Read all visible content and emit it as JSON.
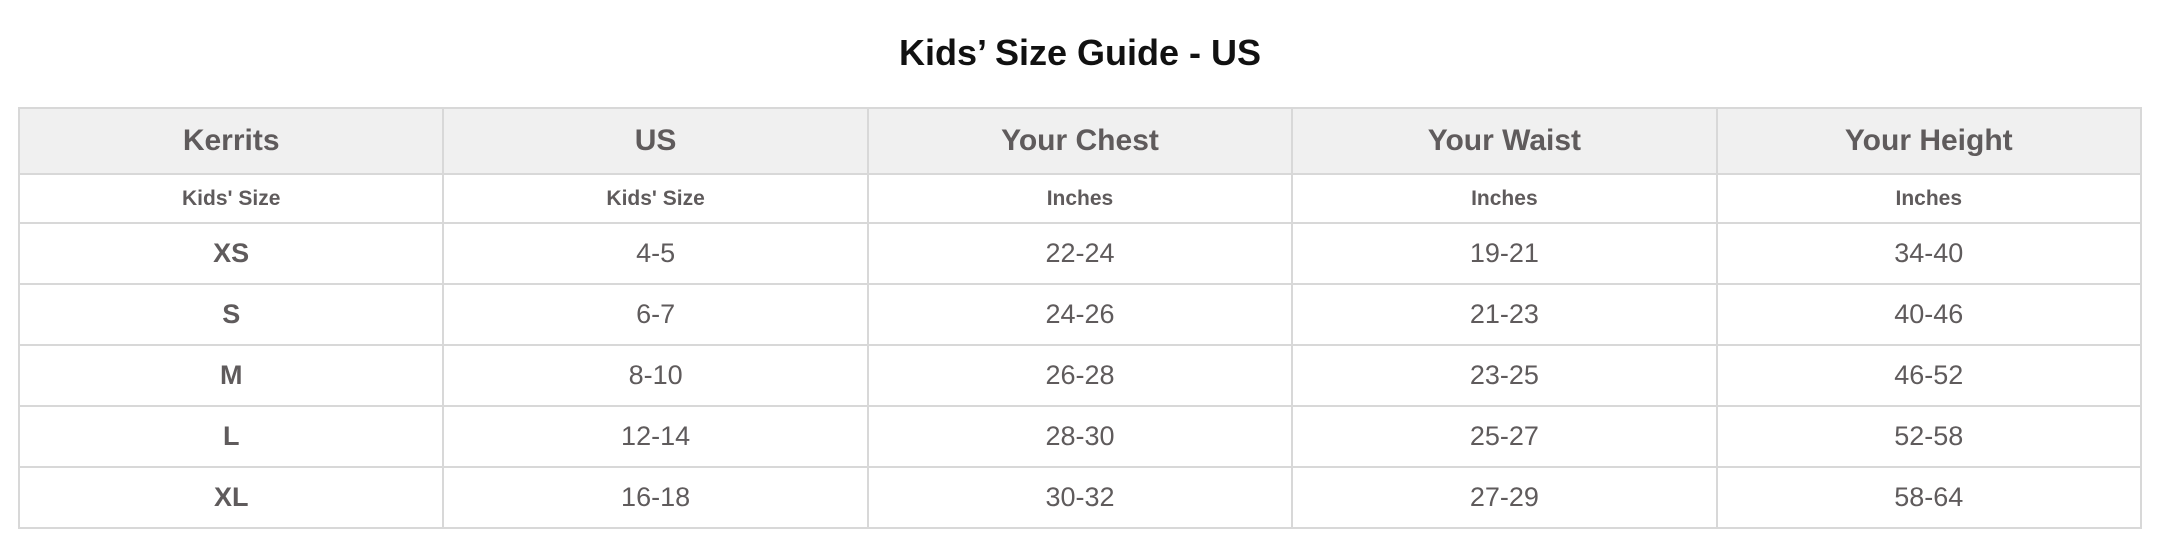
{
  "title": "Kids’ Size Guide - US",
  "table": {
    "headers": [
      "Kerrits",
      "US",
      "Your Chest",
      "Your Waist",
      "Your Height"
    ],
    "subheaders": [
      "Kids' Size",
      "Kids' Size",
      "Inches",
      "Inches",
      "Inches"
    ],
    "rows": [
      [
        "XS",
        "4-5",
        "22-24",
        "19-21",
        "34-40"
      ],
      [
        "S",
        "6-7",
        "24-26",
        "21-23",
        "40-46"
      ],
      [
        "M",
        "8-10",
        "26-28",
        "23-25",
        "46-52"
      ],
      [
        "L",
        "12-14",
        "28-30",
        "25-27",
        "52-58"
      ],
      [
        "XL",
        "16-18",
        "30-32",
        "27-29",
        "58-64"
      ]
    ]
  }
}
